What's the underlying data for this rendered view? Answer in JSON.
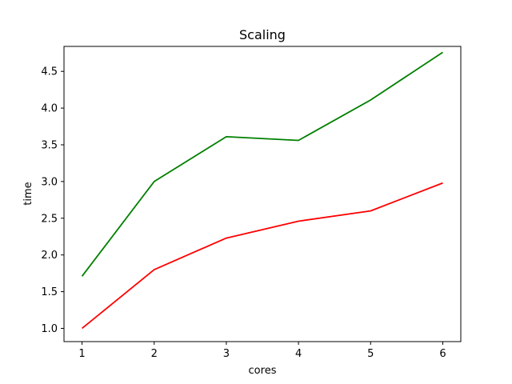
{
  "chart_data": {
    "type": "line",
    "title": "Scaling",
    "xlabel": "cores",
    "ylabel": "time",
    "x": [
      1,
      2,
      3,
      4,
      5,
      6
    ],
    "xlim": [
      0.75,
      6.25
    ],
    "ylim": [
      0.82,
      4.84
    ],
    "xticks": [
      1,
      2,
      3,
      4,
      5,
      6
    ],
    "yticks": [
      1.0,
      1.5,
      2.0,
      2.5,
      3.0,
      3.5,
      4.0,
      4.5
    ],
    "ytick_labels": [
      "1.0",
      "1.5",
      "2.0",
      "2.5",
      "3.0",
      "3.5",
      "4.0",
      "4.5"
    ],
    "grid": false,
    "legend": "none",
    "series": [
      {
        "color": "#008000",
        "values": [
          1.71,
          3.0,
          3.61,
          3.56,
          4.11,
          4.76
        ]
      },
      {
        "color": "#ff0000",
        "values": [
          1.0,
          1.8,
          2.23,
          2.46,
          2.6,
          2.98
        ]
      }
    ]
  }
}
